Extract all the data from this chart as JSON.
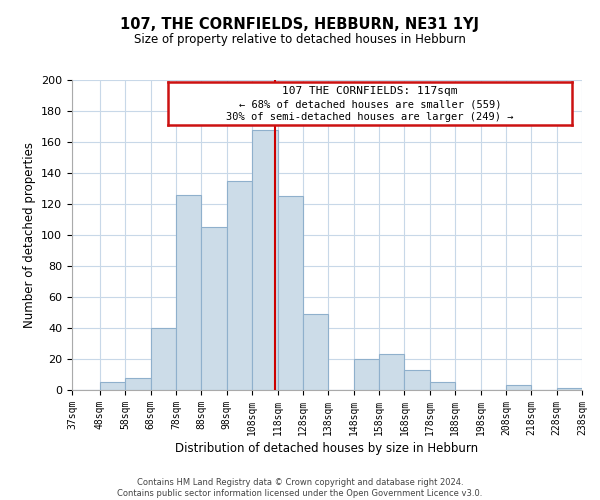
{
  "title": "107, THE CORNFIELDS, HEBBURN, NE31 1YJ",
  "subtitle": "Size of property relative to detached houses in Hebburn",
  "xlabel": "Distribution of detached houses by size in Hebburn",
  "ylabel": "Number of detached properties",
  "bin_edges": [
    37,
    48,
    58,
    68,
    78,
    88,
    98,
    108,
    118,
    128,
    138,
    148,
    158,
    168,
    178,
    188,
    198,
    208,
    218,
    228,
    238
  ],
  "bar_heights": [
    0,
    5,
    8,
    40,
    126,
    105,
    135,
    168,
    125,
    49,
    0,
    20,
    23,
    13,
    5,
    0,
    0,
    3,
    0,
    1
  ],
  "bar_color": "#ccdce8",
  "bar_edge_color": "#8fb0cc",
  "vline_x": 117,
  "vline_color": "#cc0000",
  "ylim": [
    0,
    200
  ],
  "yticks": [
    0,
    20,
    40,
    60,
    80,
    100,
    120,
    140,
    160,
    180,
    200
  ],
  "tick_labels": [
    "37sqm",
    "48sqm",
    "58sqm",
    "68sqm",
    "78sqm",
    "88sqm",
    "98sqm",
    "108sqm",
    "118sqm",
    "128sqm",
    "138sqm",
    "148sqm",
    "158sqm",
    "168sqm",
    "178sqm",
    "188sqm",
    "198sqm",
    "208sqm",
    "218sqm",
    "228sqm",
    "238sqm"
  ],
  "annotation_title": "107 THE CORNFIELDS: 117sqm",
  "annotation_line1": "← 68% of detached houses are smaller (559)",
  "annotation_line2": "30% of semi-detached houses are larger (249) →",
  "footer_line1": "Contains HM Land Registry data © Crown copyright and database right 2024.",
  "footer_line2": "Contains public sector information licensed under the Open Government Licence v3.0.",
  "background_color": "#ffffff",
  "grid_color": "#c8d8e8"
}
